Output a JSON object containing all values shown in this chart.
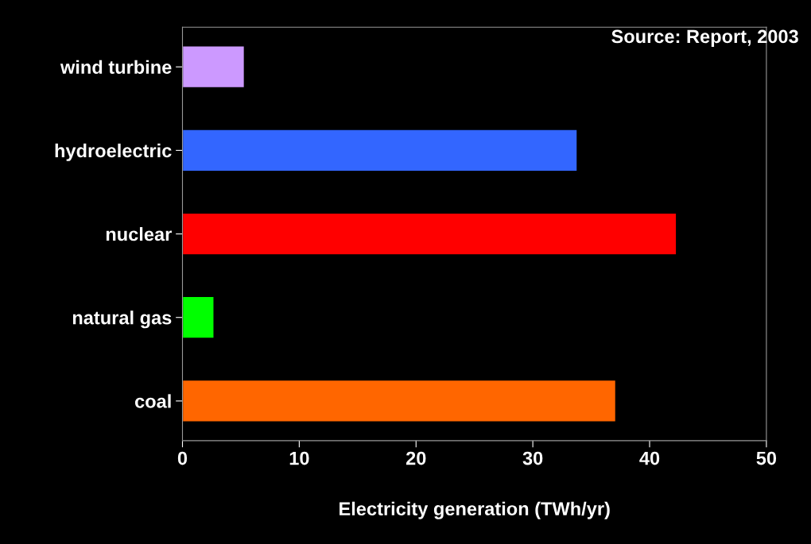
{
  "chart_data": {
    "type": "bar",
    "orientation": "horizontal",
    "xlabel": "Electricity generation (TWh/yr)",
    "categories": [
      "wind turbine",
      "hydroelectric",
      "nuclear",
      "natural gas",
      "coal"
    ],
    "values": [
      5.3,
      33.8,
      42.3,
      2.7,
      37.1
    ],
    "colors": [
      "#cc99ff",
      "#3366ff",
      "#ff0000",
      "#00ff00",
      "#ff6600"
    ],
    "xlim": [
      0,
      50
    ],
    "xticks": [
      0,
      10,
      20,
      30,
      40,
      50
    ],
    "grid": false,
    "annotations": [
      "Source: Report, 2003"
    ]
  }
}
